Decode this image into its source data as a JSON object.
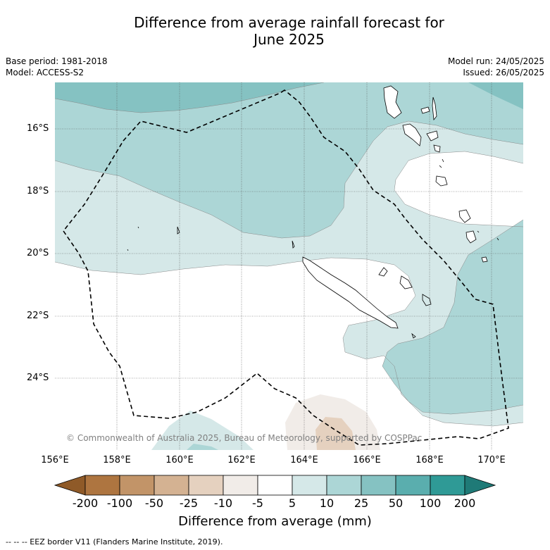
{
  "title_line1": "Difference from average rainfall forecast for",
  "title_line2": "June 2025",
  "base_period": "Base period: 1981-2018",
  "model": "Model: ACCESS-S2",
  "model_run": "Model run: 24/05/2025",
  "issued": "Issued: 26/05/2025",
  "lat_labels": [
    "16°S",
    "18°S",
    "20°S",
    "22°S",
    "24°S"
  ],
  "lon_labels": [
    "156°E",
    "158°E",
    "160°E",
    "162°E",
    "164°E",
    "166°E",
    "168°E",
    "170°E"
  ],
  "colorbar": {
    "labels": [
      "-200",
      "-100",
      "-50",
      "-25",
      "-10",
      "-5",
      "5",
      "10",
      "25",
      "50",
      "100",
      "200"
    ],
    "colors": [
      "#8f5a28",
      "#ae7540",
      "#c29468",
      "#d4b292",
      "#e5d1bf",
      "#f1ece8",
      "#ffffff",
      "#d5e8e8",
      "#acd6d6",
      "#85c2c2",
      "#5aaeae",
      "#2f9a96",
      "#1f7a77"
    ],
    "title": "Difference from average (mm)"
  },
  "copyright": "© Commonwealth of Australia 2025, Bureau of Meteorology, supported by COSPPac",
  "footer": "--  --  -- EEZ border V11 (Flanders Marine Institute, 2019)."
}
